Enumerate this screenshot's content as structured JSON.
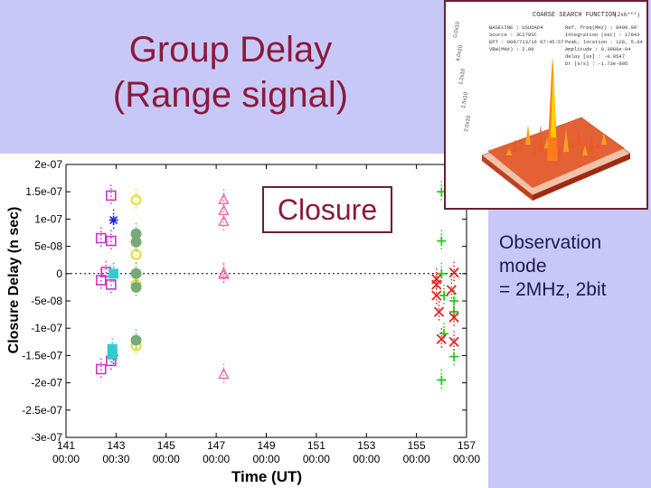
{
  "slide": {
    "title_line1": "Group Delay",
    "title_line2": "(Range signal)",
    "closure_label": "Closure",
    "observation_note": {
      "line1": "Observation",
      "line2": "mode",
      "line3": "= 2MHz, 2bit"
    }
  },
  "inset": {
    "description_icon": "3d-spectrum-plot",
    "header": "COARSE SEARCH FUNCTION",
    "header_suffix": "(2x6***)",
    "info_lines": [
      "BASELINE : USUDA64",
      "Source : 3C279SC",
      "EPT : 000/713/16 07:45:57",
      "VBW(MHz) : 2.00"
    ],
    "info_lines_right": [
      "Ref. freq(MHz) : 8400.00",
      "Integration (sec) : 17843",
      "Peak, location : 128, 5.04",
      "Amplitude : 0.3986e-04",
      "delay [us] : -0.0547",
      "Dr [s/s] : -1.73e-005"
    ],
    "z_ticks": [
      "0.0x10",
      "4.0x10",
      "1.2x10",
      "1.5x10",
      "2.0x10"
    ],
    "colors": {
      "surface": "#d83018",
      "peak": "#ffd000"
    }
  },
  "chart_data": {
    "type": "scatter",
    "xlabel": "Time (UT)",
    "ylabel": "Closure Delay (n sec)",
    "x_unit": "day-of-year",
    "xlim": [
      141,
      157
    ],
    "ylim": [
      -3e-07,
      2e-07
    ],
    "x_ticks": [
      {
        "value": 141,
        "line1": "141",
        "line2": "00:00"
      },
      {
        "value": 143,
        "line1": "143",
        "line2": "00:30"
      },
      {
        "value": 145,
        "line1": "145",
        "line2": "00:00"
      },
      {
        "value": 147,
        "line1": "147",
        "line2": "00:00"
      },
      {
        "value": 149,
        "line1": "149",
        "line2": "00:00"
      },
      {
        "value": 151,
        "line1": "151",
        "line2": "00:00"
      },
      {
        "value": 153,
        "line1": "153",
        "line2": "00:00"
      },
      {
        "value": 155,
        "line1": "155",
        "line2": "00:00"
      },
      {
        "value": 157,
        "line1": "157",
        "line2": "00:00"
      }
    ],
    "y_ticks": [
      {
        "value": 2e-07,
        "label": "2e-07"
      },
      {
        "value": 1.5e-07,
        "label": "1.5e-07"
      },
      {
        "value": 1e-07,
        "label": "1e-07"
      },
      {
        "value": 5e-08,
        "label": "5e-08"
      },
      {
        "value": 0,
        "label": "0"
      },
      {
        "value": -5e-08,
        "label": "-5e-08"
      },
      {
        "value": -1e-07,
        "label": "-1e-07"
      },
      {
        "value": -1.5e-07,
        "label": "-1.5e-07"
      },
      {
        "value": -2e-07,
        "label": "-2e-07"
      },
      {
        "value": -2.5e-07,
        "label": "-2.5e-07"
      },
      {
        "value": -3e-07,
        "label": "-3e-07"
      }
    ],
    "zero_line": true,
    "grid": false,
    "series": [
      {
        "marker": "square",
        "color": "#cc33cc",
        "points": [
          [
            142.4,
            6.5e-08
          ],
          [
            142.4,
            -1.2e-08
          ],
          [
            142.4,
            -1.75e-07
          ],
          [
            142.6,
            3e-09
          ],
          [
            142.8,
            1.43e-07
          ],
          [
            142.8,
            6e-08
          ],
          [
            142.8,
            -2e-08
          ],
          [
            142.8,
            -1.6e-07
          ]
        ]
      },
      {
        "marker": "asterisk",
        "color": "#2020dd",
        "points": [
          [
            142.9,
            9.8e-08
          ],
          [
            142.9,
            0
          ],
          [
            142.9,
            -1.5e-07
          ]
        ]
      },
      {
        "marker": "filled-square",
        "color": "#33cccc",
        "points": [
          [
            142.9,
            0
          ],
          [
            142.85,
            -1.38e-07
          ],
          [
            142.85,
            -1.48e-07
          ]
        ]
      },
      {
        "marker": "circle-open",
        "color": "#dddd22",
        "points": [
          [
            143.8,
            1.35e-07
          ],
          [
            143.8,
            3.5e-08
          ],
          [
            143.8,
            0
          ],
          [
            143.8,
            -2e-08
          ],
          [
            143.8,
            -1.32e-07
          ]
        ]
      },
      {
        "marker": "circle-filled",
        "color": "#77aa77",
        "points": [
          [
            143.8,
            7.3e-08
          ],
          [
            143.8,
            5.8e-08
          ],
          [
            143.8,
            0
          ],
          [
            143.8,
            -2.5e-08
          ],
          [
            143.8,
            -1.22e-07
          ]
        ]
      },
      {
        "marker": "triangle",
        "color": "#ee77aa",
        "points": [
          [
            147.3,
            1.35e-07
          ],
          [
            147.3,
            1.15e-07
          ],
          [
            147.3,
            9.5e-08
          ],
          [
            147.3,
            0
          ],
          [
            147.3,
            -2e-09
          ],
          [
            147.3,
            -1.85e-07
          ]
        ]
      },
      {
        "marker": "plus",
        "color": "#22cc22",
        "points": [
          [
            156.0,
            1.5e-07
          ],
          [
            156.0,
            6e-08
          ],
          [
            156.0,
            0
          ],
          [
            156.1,
            -4e-08
          ],
          [
            156.1,
            -1.1e-07
          ],
          [
            156.5,
            -1.52e-07
          ],
          [
            156.0,
            -1.95e-07
          ],
          [
            156.5,
            -7e-08
          ],
          [
            156.5,
            -5e-08
          ]
        ]
      },
      {
        "marker": "cross",
        "color": "#dd2222",
        "points": [
          [
            155.8,
            -1e-08
          ],
          [
            155.8,
            -2e-08
          ],
          [
            155.8,
            -4e-08
          ],
          [
            155.9,
            -7e-08
          ],
          [
            156.0,
            -1.2e-07
          ],
          [
            156.4,
            -3e-08
          ],
          [
            156.5,
            -8e-08
          ],
          [
            156.5,
            -1.25e-07
          ],
          [
            156.5,
            2e-09
          ]
        ]
      }
    ]
  }
}
